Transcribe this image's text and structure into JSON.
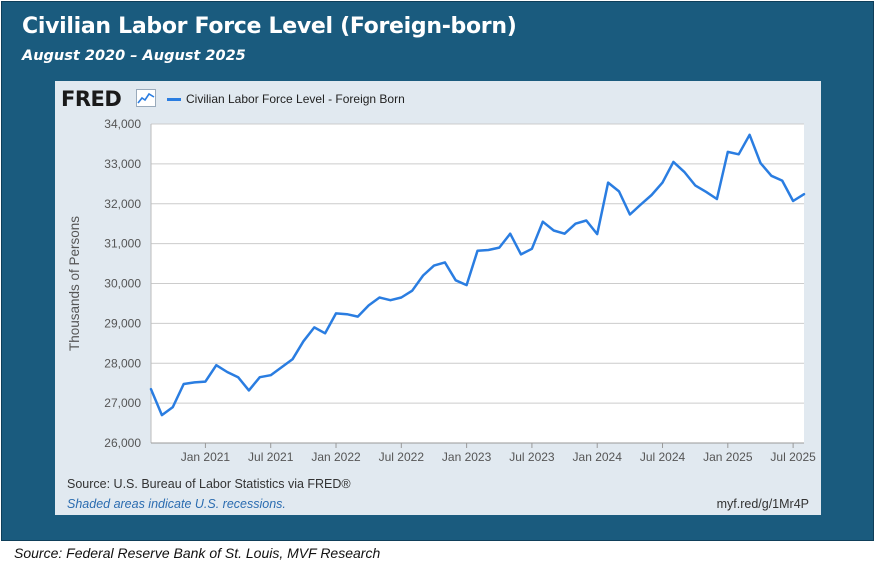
{
  "header": {
    "title": "Civilian Labor Force Level (Foreign-born)",
    "subtitle": "August 2020 – August 2025"
  },
  "fred": {
    "logo": "FRED",
    "logo_icon": "line-chart-icon",
    "source_line": "Source: U.S. Bureau of Labor Statistics via FRED®",
    "recession_note": "Shaded areas indicate U.S. recessions.",
    "short_link": "myf.red/g/1Mr4P"
  },
  "footer": {
    "source": "Source: Federal Reserve Bank of St. Louis, MVF Research"
  },
  "colors": {
    "frame": "#1a5b7e",
    "panel": "#e1e9f0",
    "plot_bg": "#ffffff",
    "series": "#2a7de1",
    "grid": "#cccccc"
  },
  "chart_data": {
    "type": "line",
    "title": "",
    "xlabel": "",
    "ylabel": "Thousands of Persons",
    "ylim": [
      26000,
      34000
    ],
    "yticks": [
      26000,
      27000,
      28000,
      29000,
      30000,
      31000,
      32000,
      33000,
      34000
    ],
    "ytick_labels": [
      "26,000",
      "27,000",
      "28,000",
      "29,000",
      "30,000",
      "31,000",
      "32,000",
      "33,000",
      "34,000"
    ],
    "xticks": [
      "2021-01",
      "2021-07",
      "2022-01",
      "2022-07",
      "2023-01",
      "2023-07",
      "2024-01",
      "2024-07",
      "2025-01",
      "2025-07"
    ],
    "xtick_labels": [
      "Jan 2021",
      "Jul 2021",
      "Jan 2022",
      "Jul 2022",
      "Jan 2023",
      "Jul 2023",
      "Jan 2024",
      "Jul 2024",
      "Jan 2025",
      "Jul 2025"
    ],
    "xlim": [
      "2020-08",
      "2025-08"
    ],
    "grid": true,
    "legend_position": "top-left",
    "series": [
      {
        "name": "Civilian Labor Force Level - Foreign Born",
        "x": [
          "2020-08",
          "2020-09",
          "2020-10",
          "2020-11",
          "2020-12",
          "2021-01",
          "2021-02",
          "2021-03",
          "2021-04",
          "2021-05",
          "2021-06",
          "2021-07",
          "2021-08",
          "2021-09",
          "2021-10",
          "2021-11",
          "2021-12",
          "2022-01",
          "2022-02",
          "2022-03",
          "2022-04",
          "2022-05",
          "2022-06",
          "2022-07",
          "2022-08",
          "2022-09",
          "2022-10",
          "2022-11",
          "2022-12",
          "2023-01",
          "2023-02",
          "2023-03",
          "2023-04",
          "2023-05",
          "2023-06",
          "2023-07",
          "2023-08",
          "2023-09",
          "2023-10",
          "2023-11",
          "2023-12",
          "2024-01",
          "2024-02",
          "2024-03",
          "2024-04",
          "2024-05",
          "2024-06",
          "2024-07",
          "2024-08",
          "2024-09",
          "2024-10",
          "2024-11",
          "2024-12",
          "2025-01",
          "2025-02",
          "2025-03",
          "2025-04",
          "2025-05",
          "2025-06",
          "2025-07",
          "2025-08"
        ],
        "values": [
          27350,
          26700,
          26900,
          27480,
          27520,
          27540,
          27950,
          27780,
          27650,
          27320,
          27650,
          27700,
          27900,
          28100,
          28550,
          28900,
          28750,
          29250,
          29230,
          29170,
          29450,
          29650,
          29580,
          29650,
          29820,
          30200,
          30450,
          30530,
          30080,
          29960,
          30820,
          30840,
          30900,
          31250,
          30730,
          30870,
          31550,
          31330,
          31250,
          31500,
          31580,
          31240,
          32530,
          32310,
          31730,
          31980,
          32220,
          32530,
          33050,
          32800,
          32460,
          32300,
          32120,
          33300,
          33240,
          33730,
          33020,
          32700,
          32580,
          32070,
          32240
        ]
      }
    ]
  }
}
